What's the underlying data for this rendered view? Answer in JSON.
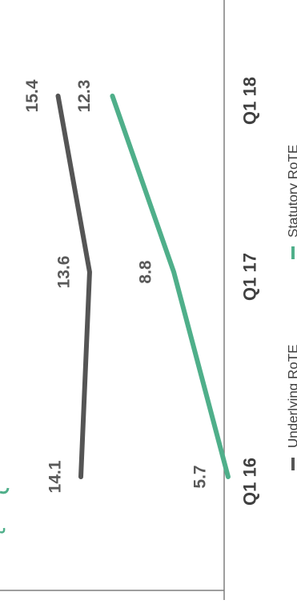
{
  "chart_data": {
    "type": "line",
    "orientation": "rotated-90-clockwise",
    "categories": [
      "Q1 16",
      "Q1 17",
      "Q1 18"
    ],
    "series": [
      {
        "name": "Underlying RoTE",
        "values": [
          14.1,
          13.6,
          15.4
        ],
        "color": "#555555"
      },
      {
        "name": "Statutory RoTE",
        "values": [
          5.7,
          8.8,
          12.3
        ],
        "color": "#4FAF8A"
      }
    ],
    "data_labels": {
      "Underlying RoTE": [
        "14.1",
        "13.6",
        "15.4"
      ],
      "Statutory RoTE": [
        "5.7",
        "8.8",
        "12.3"
      ]
    },
    "legend_placement": "bottom",
    "grid": false
  }
}
